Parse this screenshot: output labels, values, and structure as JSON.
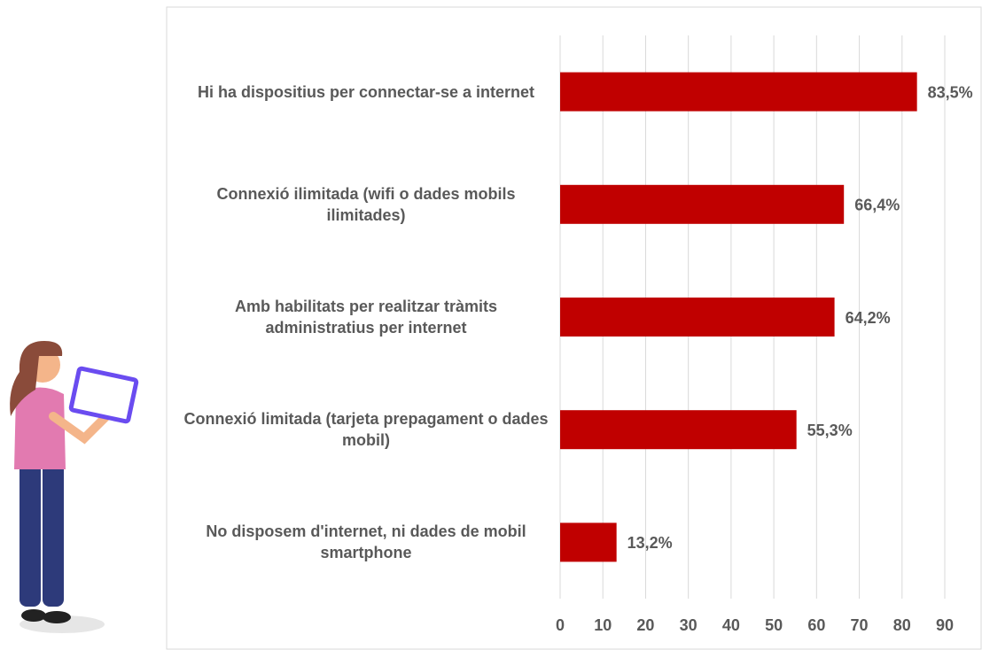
{
  "chart_data": {
    "type": "bar",
    "orientation": "horizontal",
    "categories": [
      "Hi ha dispositius per connectar-se a internet",
      "Connexió ilimitada (wifi o dades mobils ilimitades)",
      "Amb habilitats per realitzar tràmits administratius per internet",
      "Connexió limitada (tarjeta prepagament o dades mobil)",
      "No disposem d'internet, ni dades de mobil smartphone"
    ],
    "values": [
      83.5,
      66.4,
      64.2,
      55.3,
      13.2
    ],
    "value_labels": [
      "83,5%",
      "66,4%",
      "64,2%",
      "55,3%",
      "13,2%"
    ],
    "color": "#c00000",
    "xlim": [
      0,
      90
    ],
    "xticks": [
      0,
      10,
      20,
      30,
      40,
      50,
      60,
      70,
      80,
      90
    ],
    "grid": true
  }
}
